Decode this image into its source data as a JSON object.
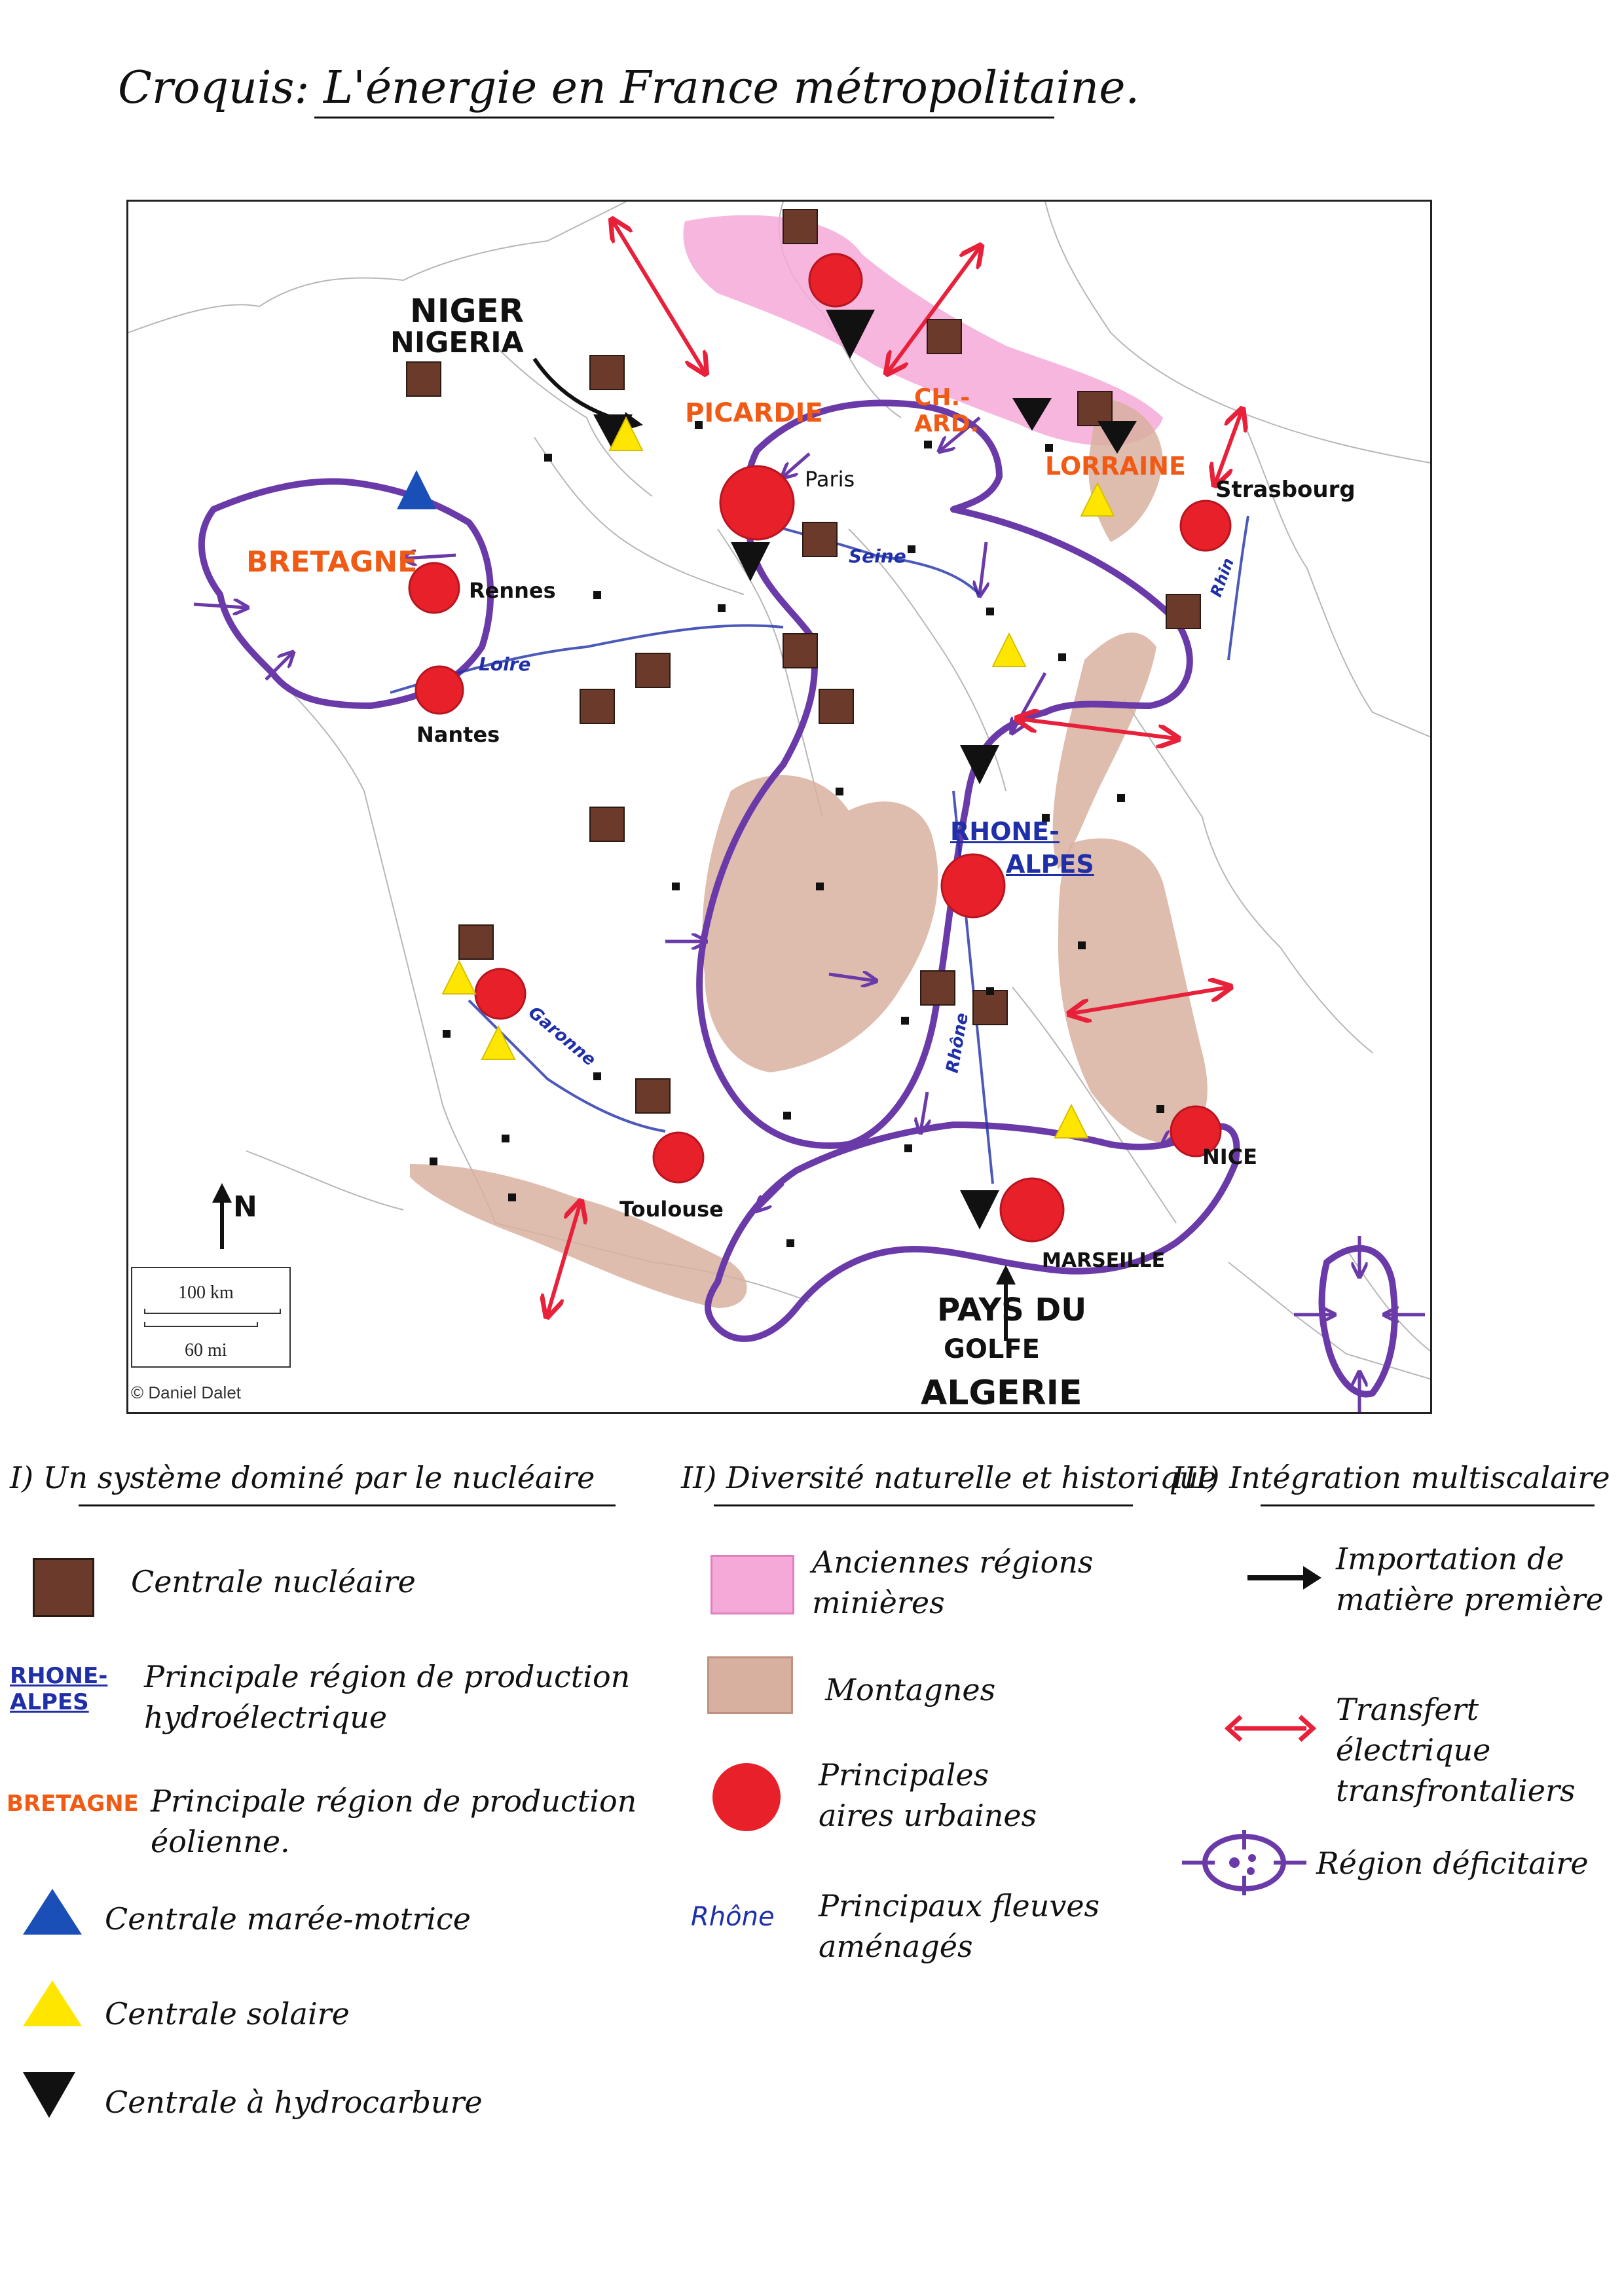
{
  "title": "Croquis: L'énergie en France métropolitaine.",
  "map": {
    "cities": {
      "paris": "Paris",
      "rennes": "Rennes",
      "nantes": "Nantes",
      "strasbourg": "Strasbourg",
      "toulouse": "Toulouse",
      "marseille": "MARSEILLE",
      "nice": "NICE"
    },
    "regions": {
      "bretagne": "BRETAGNE",
      "picardie": "PICARDIE",
      "ch_ard": "CH.-ARD.",
      "lorraine": "LORRAINE",
      "rhone_alpes_1": "RHONE-",
      "rhone_alpes_2": "ALPES"
    },
    "rivers": {
      "seine": "Seine",
      "loire": "Loire",
      "garonne": "Garonne",
      "rhone": "Rhône",
      "rhin": "Rhin"
    },
    "imports": {
      "niger_1": "NIGER",
      "niger_2": "NIGERIA",
      "golfe_1": "PAYS DU",
      "golfe_2": "GOLFE",
      "golfe_3": "ALGERIE"
    },
    "north": "N",
    "scale_km": "100 km",
    "scale_mi": "60 mi",
    "copyright": "© Daniel Dalet",
    "colors": {
      "nuclear": "#6b3a2a",
      "urban": "#e8202a",
      "deficit": "#6a3aa8",
      "transfer": "#e8203a",
      "mining": "#f5a9d8",
      "mountain": "#d8b0a0",
      "solar": "#ffe600",
      "tidal": "#1a4fb8"
    }
  },
  "legend": {
    "section1": {
      "title": "I) Un système dominé par le nucléaire",
      "items": [
        {
          "label": "Centrale nucléaire"
        },
        {
          "sample_1": "RHONE-",
          "sample_2": "ALPES",
          "label_1": "Principale région de production",
          "label_2": "hydroélectrique"
        },
        {
          "sample": "BRETAGNE",
          "label_1": "Principale région de production",
          "label_2": "éolienne."
        },
        {
          "label": "Centrale marée-motrice"
        },
        {
          "label": "Centrale solaire"
        },
        {
          "label": "Centrale à hydrocarbure"
        }
      ]
    },
    "section2": {
      "title": "II) Diversité naturelle et historique",
      "items": [
        {
          "label_1": "Anciennes régions",
          "label_2": "minières"
        },
        {
          "label": "Montagnes"
        },
        {
          "label_1": "Principales",
          "label_2": "aires urbaines"
        },
        {
          "sample": "Rhône",
          "label_1": "Principaux fleuves",
          "label_2": "aménagés"
        }
      ]
    },
    "section3": {
      "title": "III) Intégration multiscalaire",
      "items": [
        {
          "label_1": "Importation de",
          "label_2": "matière première"
        },
        {
          "label_1": "Transfert électrique",
          "label_2": "transfrontaliers"
        },
        {
          "label": "Région déficitaire"
        }
      ]
    }
  }
}
